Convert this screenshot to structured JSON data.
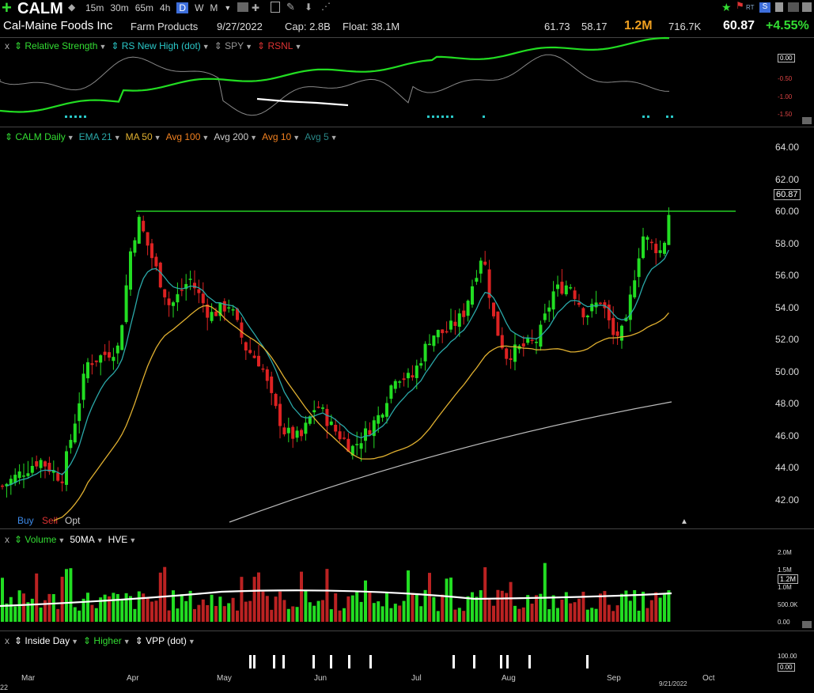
{
  "header": {
    "symbol": "CALM",
    "timeframes": [
      "15m",
      "30m",
      "65m",
      "4h",
      "D",
      "W",
      "M"
    ],
    "selected_timeframe": "D",
    "company": "Cal-Maine Foods Inc",
    "industry": "Farm Products",
    "date": "9/27/2022",
    "cap": "Cap: 2.8B",
    "float": "Float: 38.1M",
    "high": "61.73",
    "low": "58.17",
    "volume": "1.2M",
    "avg_volume": "716.7K",
    "price": "60.87",
    "change": "+4.55%",
    "rt_label": "RT"
  },
  "rs_panel": {
    "close": "x",
    "items": [
      "Relative Strength",
      "RS New High (dot)",
      "SPY",
      "RSNL"
    ],
    "ticks": [
      "0.00",
      "-0.50",
      "-1.00",
      "-1.50"
    ],
    "current": "0.00"
  },
  "price_panel": {
    "items": [
      "CALM Daily",
      "EMA 21",
      "MA 50",
      "Avg 100",
      "Avg 200",
      "Avg 10",
      "Avg 5"
    ],
    "ticks": [
      "64.00",
      "62.00",
      "60.00",
      "58.00",
      "56.00",
      "54.00",
      "52.00",
      "50.00",
      "48.00",
      "46.00",
      "44.00",
      "42.00"
    ],
    "current": "60.87",
    "buy": "Buy",
    "sell": "Sell",
    "opt": "Opt"
  },
  "volume_panel": {
    "close": "x",
    "items": [
      "Volume",
      "50MA",
      "HVE"
    ],
    "ticks": [
      "2.0M",
      "1.5M",
      "1.0M",
      "500.0K",
      "0.00"
    ],
    "current": "1.2M"
  },
  "pattern_panel": {
    "close": "x",
    "items": [
      "Inside Day",
      "Higher",
      "VPP (dot)"
    ],
    "ticks": [
      "100.00",
      "0.00"
    ]
  },
  "x_axis": {
    "months": [
      "Mar",
      "Apr",
      "May",
      "Jun",
      "Jul",
      "Aug",
      "Sep",
      "Oct"
    ],
    "last_date": "9/21/2022",
    "left_cut": "22"
  },
  "colors": {
    "up": "#22dd22",
    "down": "#dd2222",
    "ema21": "#2aa8a8",
    "ma50": "#e0b030",
    "avg200": "#bbbbbb",
    "rs": "#22dd22",
    "accent": "#3d6edb",
    "volume_text": "#f0a020"
  }
}
